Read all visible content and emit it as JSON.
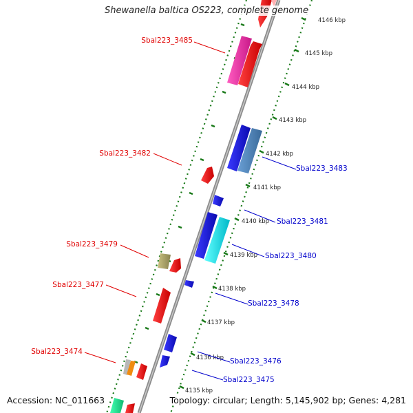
{
  "title": "Shewanella baltica OS223, complete genome",
  "accession_text": "Accession: NC_011663",
  "summary_text": "Topology: circular; Length: 5,145,902 bp; Genes: 4,281",
  "ruler_ticks": [
    {
      "label": "4146 kbp"
    },
    {
      "label": "4145 kbp"
    },
    {
      "label": "4144 kbp"
    },
    {
      "label": "4143 kbp"
    },
    {
      "label": "4142 kbp"
    },
    {
      "label": "4141 kbp"
    },
    {
      "label": "4140 kbp"
    },
    {
      "label": "4139 kbp"
    },
    {
      "label": "4138 kbp"
    },
    {
      "label": "4137 kbp"
    },
    {
      "label": "4136 kbp"
    },
    {
      "label": "4135 kbp"
    }
  ],
  "gene_labels_left": [
    {
      "label": "Sbal223_3485",
      "color": "#e00000"
    },
    {
      "label": "Sbal223_3482",
      "color": "#e00000"
    },
    {
      "label": "Sbal223_3479",
      "color": "#e00000"
    },
    {
      "label": "Sbal223_3477",
      "color": "#e00000"
    },
    {
      "label": "Sbal223_3474",
      "color": "#e00000"
    }
  ],
  "gene_labels_right": [
    {
      "label": "Sbal223_3483",
      "color": "#0000cc"
    },
    {
      "label": "Sbal223_3481",
      "color": "#0000cc"
    },
    {
      "label": "Sbal223_3480",
      "color": "#0000cc"
    },
    {
      "label": "Sbal223_3478",
      "color": "#0000cc"
    },
    {
      "label": "Sbal223_3476",
      "color": "#0000cc"
    },
    {
      "label": "Sbal223_3475",
      "color": "#0000cc"
    }
  ],
  "colors": {
    "backbone": "#8c8c8c",
    "tick_green": "#1a7a1a",
    "red": "#e60000",
    "blue": "#1a1adc",
    "pink": "#ee2aa0",
    "steelblue": "#4a7fb5",
    "cyan": "#12e6e6",
    "olive": "#a8a060",
    "orange": "#f08c10",
    "grey": "#b0b0b0",
    "green": "#18d890"
  }
}
